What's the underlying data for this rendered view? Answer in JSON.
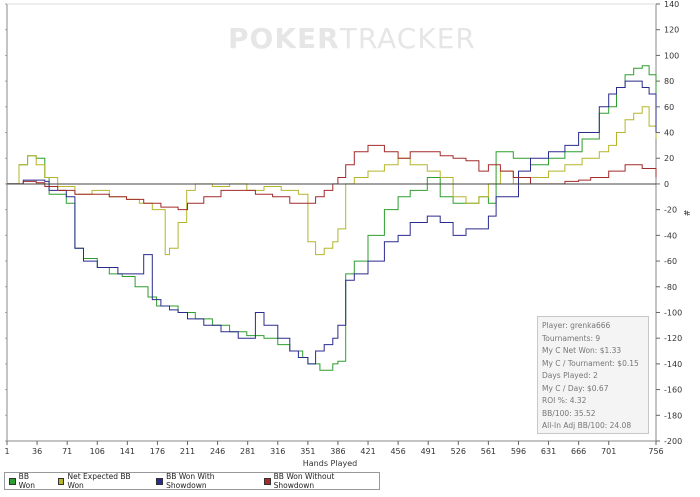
{
  "watermark": {
    "part1": "POKER",
    "part2": "TRACKER"
  },
  "chart_data": {
    "type": "line",
    "xlabel": "Hands Played",
    "ylabel": "#",
    "xlim": [
      1,
      756
    ],
    "ylim": [
      -200,
      140
    ],
    "x_ticks": [
      1,
      36,
      71,
      106,
      141,
      176,
      211,
      246,
      281,
      316,
      351,
      386,
      421,
      456,
      491,
      526,
      561,
      596,
      631,
      666,
      701,
      756
    ],
    "y_ticks": [
      140,
      120,
      100,
      80,
      60,
      40,
      20,
      0,
      -20,
      -40,
      -60,
      -80,
      -100,
      -120,
      -140,
      -160,
      -180,
      -200
    ],
    "series": [
      {
        "name": "BB Won",
        "color": "#2e9e2e",
        "x": [
          1,
          15,
          25,
          35,
          45,
          50,
          70,
          80,
          90,
          106,
          120,
          135,
          150,
          165,
          175,
          185,
          200,
          220,
          240,
          260,
          280,
          300,
          316,
          330,
          345,
          351,
          365,
          380,
          386,
          395,
          405,
          421,
          440,
          456,
          470,
          490,
          505,
          520,
          535,
          550,
          561,
          570,
          590,
          596,
          610,
          631,
          650,
          670,
          690,
          701,
          710,
          720,
          730,
          740,
          748,
          756
        ],
        "y": [
          0,
          15,
          22,
          20,
          5,
          -8,
          -15,
          -50,
          -58,
          -65,
          -70,
          -72,
          -80,
          -88,
          -95,
          -95,
          -100,
          -105,
          -110,
          -115,
          -118,
          -120,
          -125,
          -130,
          -135,
          -140,
          -145,
          -140,
          -138,
          -70,
          -60,
          -40,
          -20,
          -10,
          -5,
          5,
          -10,
          -15,
          -15,
          -10,
          -15,
          25,
          20,
          20,
          15,
          20,
          25,
          35,
          55,
          60,
          75,
          85,
          90,
          92,
          85,
          65
        ]
      },
      {
        "name": "Net Expected BB Won",
        "color": "#b5b52b",
        "x": [
          1,
          15,
          25,
          35,
          45,
          60,
          80,
          100,
          120,
          140,
          155,
          170,
          185,
          190,
          200,
          210,
          220,
          240,
          260,
          280,
          300,
          320,
          340,
          351,
          360,
          370,
          380,
          386,
          395,
          405,
          421,
          440,
          456,
          470,
          490,
          505,
          520,
          535,
          550,
          561,
          575,
          590,
          596,
          610,
          631,
          650,
          670,
          690,
          701,
          710,
          720,
          730,
          740,
          748,
          756
        ],
        "y": [
          0,
          15,
          22,
          15,
          5,
          -2,
          -8,
          -5,
          -10,
          -12,
          -15,
          -20,
          -55,
          -50,
          -30,
          -5,
          0,
          -2,
          0,
          -5,
          -2,
          -5,
          -8,
          -45,
          -55,
          -50,
          -45,
          -35,
          0,
          5,
          10,
          15,
          20,
          15,
          10,
          5,
          -10,
          -15,
          -10,
          0,
          10,
          0,
          0,
          5,
          10,
          15,
          20,
          25,
          30,
          40,
          50,
          55,
          60,
          45,
          35
        ]
      },
      {
        "name": "BB Won With Showdown",
        "color": "#2b2b8f",
        "x": [
          1,
          20,
          35,
          45,
          50,
          70,
          80,
          90,
          106,
          130,
          150,
          160,
          170,
          180,
          190,
          200,
          211,
          230,
          250,
          270,
          290,
          300,
          316,
          330,
          340,
          351,
          360,
          370,
          380,
          386,
          395,
          405,
          421,
          440,
          456,
          470,
          490,
          505,
          520,
          535,
          550,
          561,
          570,
          590,
          596,
          610,
          631,
          650,
          666,
          690,
          701,
          710,
          720,
          730,
          740,
          748,
          756
        ],
        "y": [
          0,
          3,
          3,
          2,
          -5,
          -10,
          -50,
          -60,
          -65,
          -70,
          -70,
          -55,
          -90,
          -95,
          -98,
          -100,
          -105,
          -110,
          -115,
          -120,
          -100,
          -110,
          -120,
          -130,
          -135,
          -140,
          -130,
          -125,
          -120,
          -110,
          -75,
          -70,
          -60,
          -45,
          -40,
          -30,
          -25,
          -30,
          -40,
          -35,
          -35,
          -25,
          -10,
          -10,
          10,
          20,
          25,
          30,
          40,
          60,
          70,
          75,
          80,
          80,
          75,
          70,
          40
        ]
      },
      {
        "name": "BB Won Without Showdown",
        "color": "#a32b2b",
        "x": [
          1,
          20,
          35,
          45,
          60,
          80,
          100,
          120,
          140,
          160,
          180,
          200,
          211,
          230,
          250,
          270,
          290,
          310,
          330,
          351,
          360,
          370,
          380,
          386,
          395,
          405,
          421,
          440,
          456,
          470,
          490,
          505,
          520,
          535,
          550,
          561,
          575,
          590,
          596,
          610,
          631,
          650,
          666,
          680,
          701,
          720,
          740,
          756
        ],
        "y": [
          0,
          2,
          1,
          -2,
          -5,
          -8,
          -8,
          -10,
          -12,
          -15,
          -18,
          -20,
          -15,
          -10,
          -5,
          -5,
          -8,
          -10,
          -15,
          -15,
          -10,
          -5,
          0,
          5,
          15,
          25,
          30,
          25,
          20,
          25,
          25,
          22,
          20,
          18,
          10,
          15,
          10,
          5,
          5,
          0,
          0,
          2,
          3,
          5,
          10,
          15,
          12,
          5
        ]
      }
    ]
  },
  "stats": [
    "Player: grenka666",
    "Tournaments: 9",
    "My C Net Won: $1.33",
    "My C / Tournament: $0.15",
    "Days Played: 2",
    "My C / Day: $0.67",
    "ROI %: 4.32",
    "BB/100: 35.52",
    "All-In Adj BB/100: 24.08"
  ]
}
